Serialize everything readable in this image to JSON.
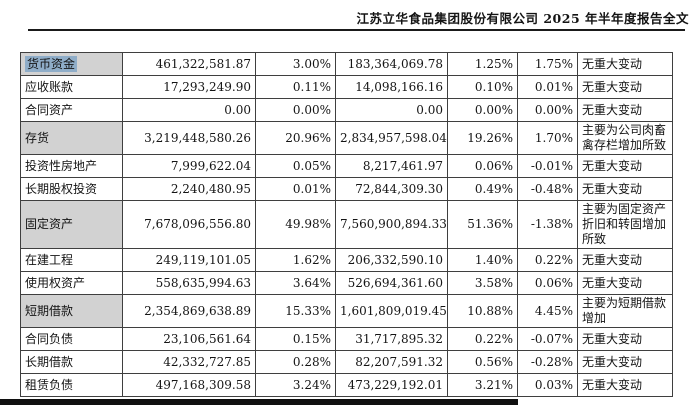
{
  "header": {
    "title": "江苏立华食品集团股份有限公司 2025 年半年度报告全文"
  },
  "colors": {
    "label_shade": "#d2d2d2",
    "text_selection": "#8fadc8",
    "rule": "#1a1a1a"
  },
  "table": {
    "rows": [
      {
        "item": "货币资金",
        "amt1": "461,322,581.87",
        "pct1": "3.00%",
        "amt2": "183,364,069.78",
        "pct2": "1.25%",
        "chg": "1.75%",
        "remark": "无重大变动",
        "shaded": true,
        "selected": true
      },
      {
        "item": "应收账款",
        "amt1": "17,293,249.90",
        "pct1": "0.11%",
        "amt2": "14,098,166.16",
        "pct2": "0.10%",
        "chg": "0.01%",
        "remark": "无重大变动",
        "shaded": false,
        "selected": false
      },
      {
        "item": "合同资产",
        "amt1": "0.00",
        "pct1": "0.00%",
        "amt2": "0.00",
        "pct2": "0.00%",
        "chg": "0.00%",
        "remark": "无重大变动",
        "shaded": false,
        "selected": false
      },
      {
        "item": "存货",
        "amt1": "3,219,448,580.26",
        "pct1": "20.96%",
        "amt2": "2,834,957,598.04",
        "pct2": "19.26%",
        "chg": "1.70%",
        "remark": "主要为公司肉畜禽存栏增加所致",
        "shaded": true,
        "selected": false
      },
      {
        "item": "投资性房地产",
        "amt1": "7,999,622.04",
        "pct1": "0.05%",
        "amt2": "8,217,461.97",
        "pct2": "0.06%",
        "chg": "-0.01%",
        "remark": "无重大变动",
        "shaded": false,
        "selected": false
      },
      {
        "item": "长期股权投资",
        "amt1": "2,240,480.95",
        "pct1": "0.01%",
        "amt2": "72,844,309.30",
        "pct2": "0.49%",
        "chg": "-0.48%",
        "remark": "无重大变动",
        "shaded": false,
        "selected": false
      },
      {
        "item": "固定资产",
        "amt1": "7,678,096,556.80",
        "pct1": "49.98%",
        "amt2": "7,560,900,894.33",
        "pct2": "51.36%",
        "chg": "-1.38%",
        "remark": "主要为固定资产折旧和转固增加所致",
        "shaded": true,
        "selected": false
      },
      {
        "item": "在建工程",
        "amt1": "249,119,101.05",
        "pct1": "1.62%",
        "amt2": "206,332,590.10",
        "pct2": "1.40%",
        "chg": "0.22%",
        "remark": "无重大变动",
        "shaded": false,
        "selected": false
      },
      {
        "item": "使用权资产",
        "amt1": "558,635,994.63",
        "pct1": "3.64%",
        "amt2": "526,694,361.60",
        "pct2": "3.58%",
        "chg": "0.06%",
        "remark": "无重大变动",
        "shaded": false,
        "selected": false
      },
      {
        "item": "短期借款",
        "amt1": "2,354,869,638.89",
        "pct1": "15.33%",
        "amt2": "1,601,809,019.45",
        "pct2": "10.88%",
        "chg": "4.45%",
        "remark": "主要为短期借款增加",
        "shaded": true,
        "selected": false
      },
      {
        "item": "合同负债",
        "amt1": "23,106,561.64",
        "pct1": "0.15%",
        "amt2": "31,717,895.32",
        "pct2": "0.22%",
        "chg": "-0.07%",
        "remark": "无重大变动",
        "shaded": false,
        "selected": false
      },
      {
        "item": "长期借款",
        "amt1": "42,332,727.85",
        "pct1": "0.28%",
        "amt2": "82,207,591.32",
        "pct2": "0.56%",
        "chg": "-0.28%",
        "remark": "无重大变动",
        "shaded": false,
        "selected": false
      },
      {
        "item": "租赁负债",
        "amt1": "497,168,309.58",
        "pct1": "3.24%",
        "amt2": "473,229,192.01",
        "pct2": "3.21%",
        "chg": "0.03%",
        "remark": "无重大变动",
        "shaded": false,
        "selected": false
      }
    ]
  }
}
